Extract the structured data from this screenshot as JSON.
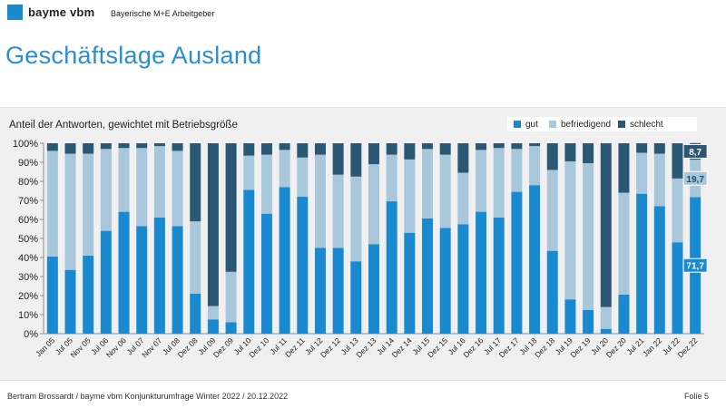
{
  "header": {
    "logo": "bayme vbm",
    "org": "Bayerische M+E Arbeitgeber",
    "title": "Geschäftslage Ausland"
  },
  "footer": {
    "left": "Bertram Brossardt  /  bayme vbm Konjunkturumfrage Winter 2022 / 20.12.2022",
    "right": "Folie 5"
  },
  "colors": {
    "gut": "#1a8ad0",
    "befriedigend": "#a8c7da",
    "schlecht": "#2a5773",
    "title": "#2b8fcf"
  },
  "chart_data": {
    "type": "bar",
    "stacked": true,
    "title": "Anteil der Antworten, gewichtet mit Betriebsgröße",
    "ylim": [
      0,
      100
    ],
    "yticks": [
      "0%",
      "10%",
      "20%",
      "30%",
      "40%",
      "50%",
      "60%",
      "70%",
      "80%",
      "90%",
      "100%"
    ],
    "categories": [
      "Jan 05",
      "Jul 05",
      "Nov 05",
      "Jul 06",
      "Nov 06",
      "Jul 07",
      "Nov 07",
      "Jul 08",
      "Dez 08",
      "Jul 09",
      "Dez 09",
      "Jul 10",
      "Dez 10",
      "Jul 11",
      "Dez 11",
      "Jul 12",
      "Dez 12",
      "Jul 13",
      "Dez 13",
      "Jul 14",
      "Dez 14",
      "Jul 15",
      "Dez 15",
      "Jul 16",
      "Dez 16",
      "Jul 17",
      "Dez 17",
      "Jul 18",
      "Dez 18",
      "Jul 19",
      "Dez 19",
      "Jul 20",
      "Dez 20",
      "Jul 21",
      "Jan 22",
      "Jul 22",
      "Dez 22"
    ],
    "series": [
      {
        "name": "gut",
        "values": [
          40.5,
          33.5,
          41,
          54,
          64,
          56.5,
          61,
          56.5,
          21,
          7.5,
          6,
          75.5,
          63,
          77,
          72,
          45,
          45,
          38,
          47,
          69.5,
          53,
          60.5,
          55.5,
          57.5,
          64,
          61,
          74.5,
          78,
          43.5,
          18,
          12.5,
          2.5,
          20.5,
          73.5,
          67,
          48,
          71.7
        ]
      },
      {
        "name": "befriedigend",
        "values": [
          55.5,
          61,
          53.5,
          43,
          33.5,
          41,
          37.5,
          39.5,
          38,
          7,
          26.5,
          18,
          31,
          19.5,
          20.5,
          49,
          38.5,
          44.5,
          42,
          24.5,
          38.5,
          36.5,
          38.5,
          27,
          32.5,
          36.5,
          22.5,
          20.5,
          42.5,
          72.5,
          77,
          11.5,
          53.5,
          21.5,
          27.5,
          33.5,
          19.7
        ]
      },
      {
        "name": "schlecht",
        "values": [
          4,
          5.5,
          5.5,
          3,
          2.5,
          2.5,
          1.5,
          4,
          41,
          85.5,
          67.5,
          6.5,
          6,
          3.5,
          7.5,
          6,
          16.5,
          17.5,
          11,
          6,
          8.5,
          3,
          6,
          15.5,
          3.5,
          2.5,
          3,
          1.5,
          14,
          9.5,
          10.5,
          86,
          26,
          5,
          5.5,
          18.5,
          8.7
        ]
      }
    ],
    "data_labels": [
      {
        "category": "Dez 22",
        "series": "gut",
        "text": "71,7"
      },
      {
        "category": "Dez 22",
        "series": "befriedigend",
        "text": "19,7"
      },
      {
        "category": "Dez 22",
        "series": "schlecht",
        "text": "8,7"
      }
    ],
    "legend_position": "top-right"
  }
}
